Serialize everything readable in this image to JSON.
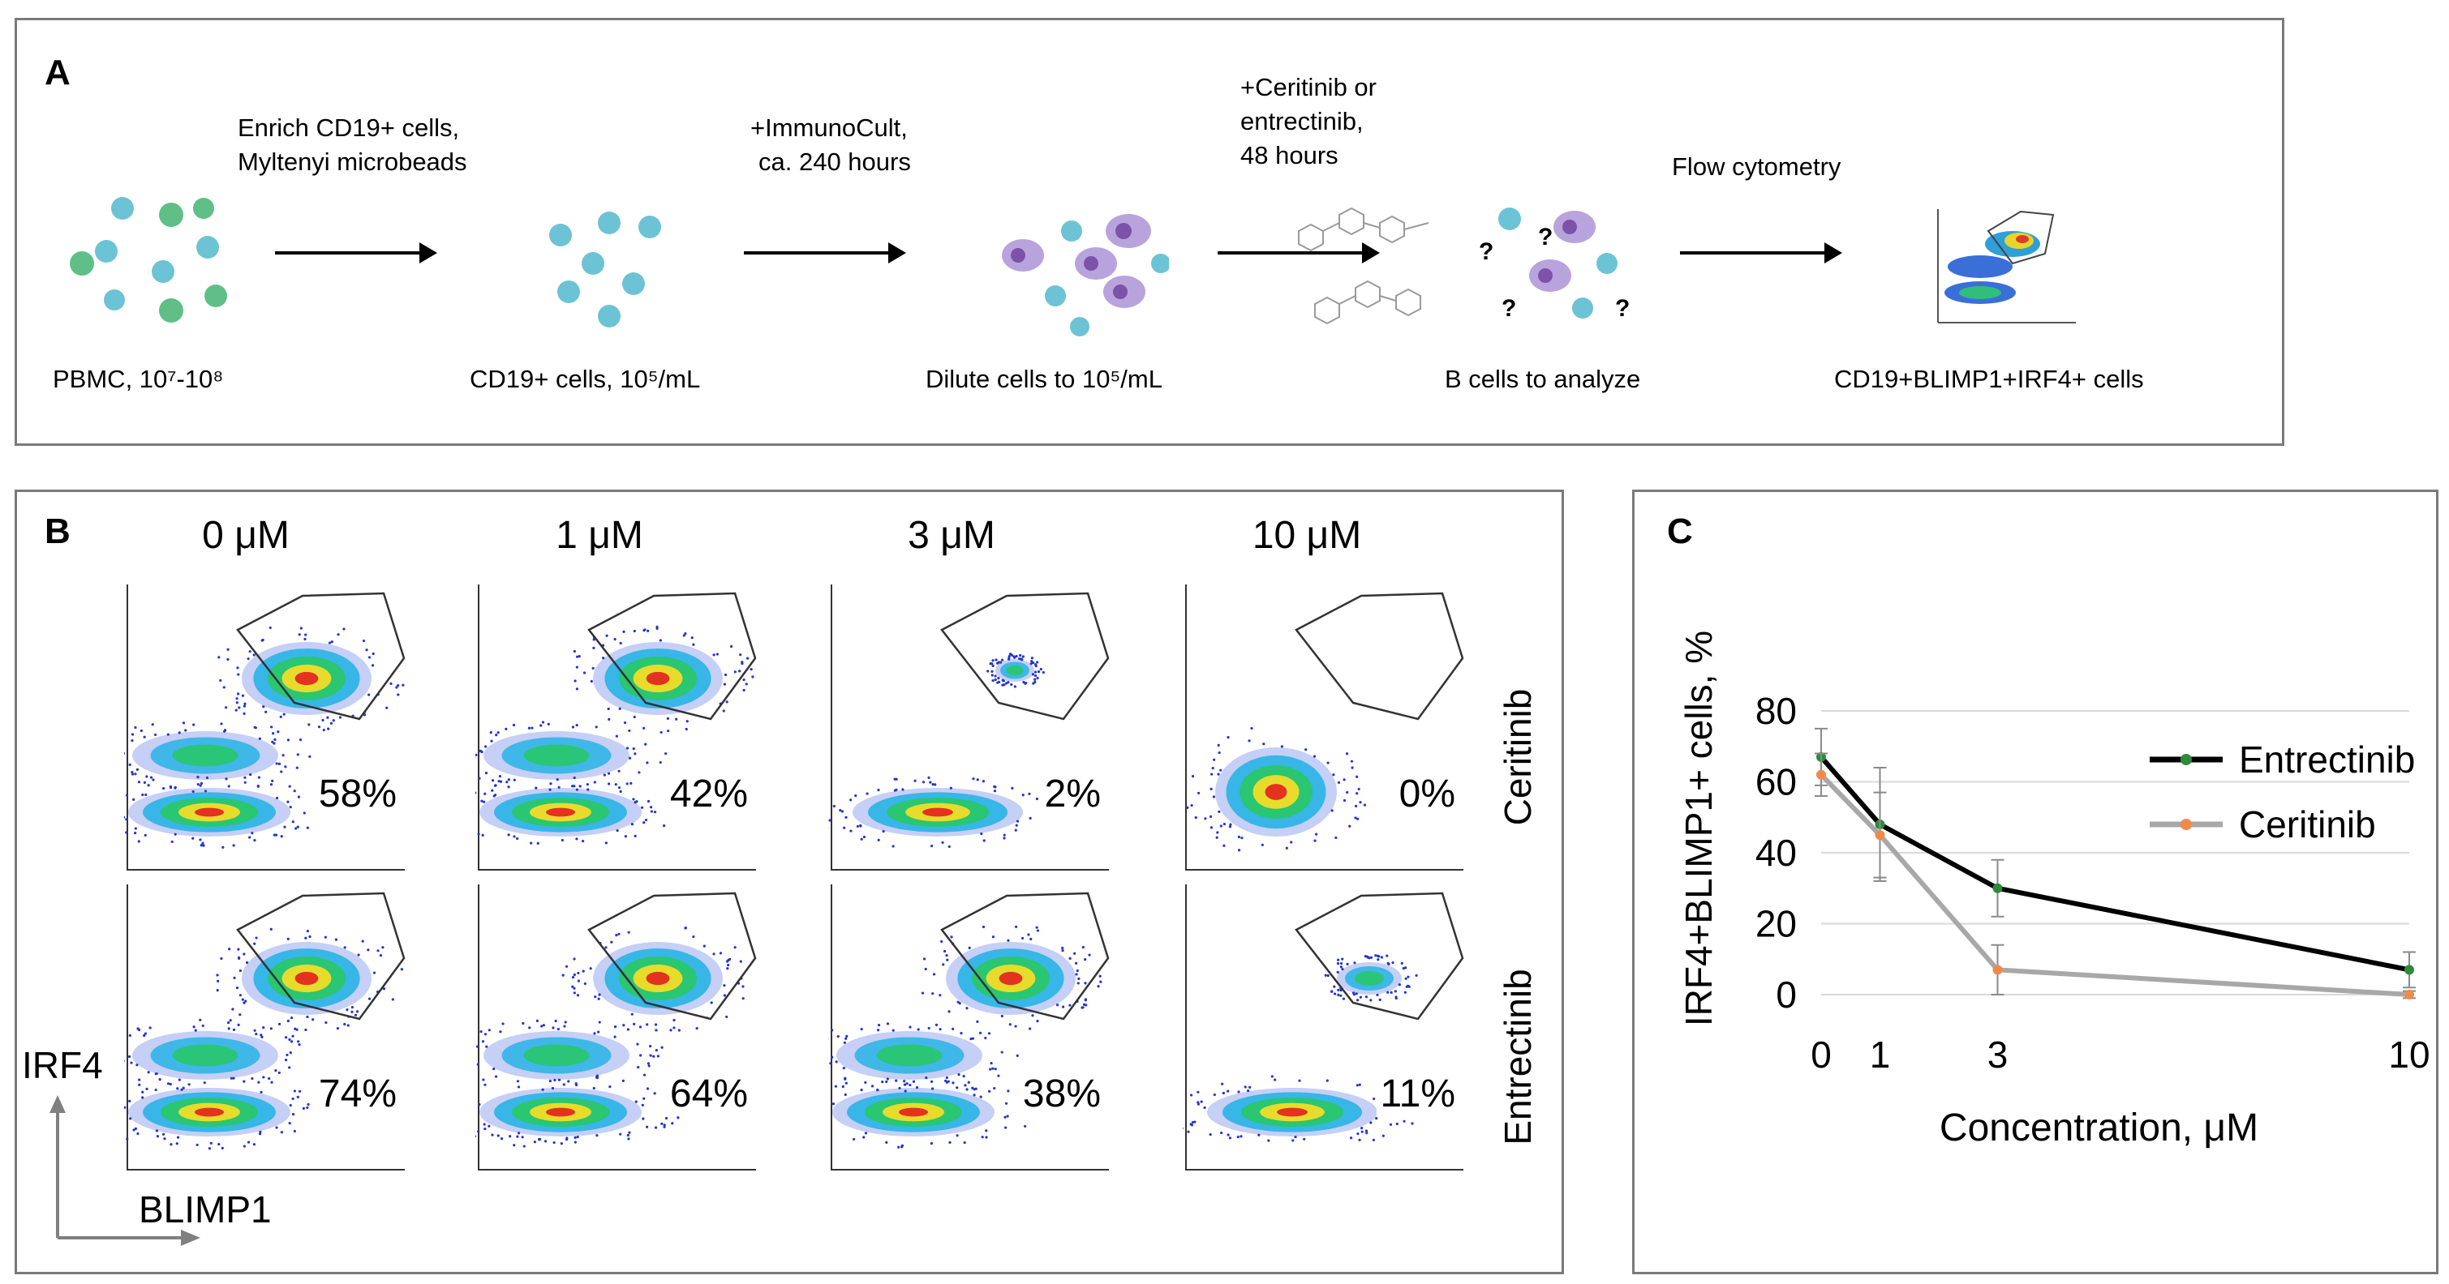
{
  "panelA": {
    "letter": "A",
    "steps": [
      {
        "label": "PBMC, 10⁷-10⁸"
      },
      {
        "label": "CD19+ cells, 10⁵/mL"
      },
      {
        "label": "Dilute cells to 10⁵/mL"
      },
      {
        "label": "B cells to analyze"
      },
      {
        "label": "CD19+BLIMP1+IRF4+ cells"
      }
    ],
    "transitions": [
      {
        "lines": [
          "Enrich CD19+ cells,",
          "Myltenyi microbeads"
        ]
      },
      {
        "lines": [
          "+ImmunoCult,",
          "ca. 240 hours"
        ]
      },
      {
        "lines": [
          "+Ceritinib or",
          "entrectinib,",
          "48 hours"
        ]
      },
      {
        "lines": [
          "Flow cytometry"
        ]
      }
    ],
    "question_mark": "?",
    "colors": {
      "b_cell": "#6cc3d5",
      "green_cell": "#5fbf86",
      "plasma_cell": "#b9a3dc",
      "plasma_nucleus": "#7c53a8"
    }
  },
  "panelB": {
    "letter": "B",
    "concentrations": [
      "0 μM",
      "1 μM",
      "3 μM",
      "10 μM"
    ],
    "rows": [
      {
        "drug": "Ceritinib",
        "percents": [
          "58%",
          "42%",
          "2%",
          "0%"
        ]
      },
      {
        "drug": "Entrectinib",
        "percents": [
          "74%",
          "64%",
          "38%",
          "11%"
        ]
      }
    ],
    "y_axis": "IRF4",
    "x_axis": "BLIMP1"
  },
  "panelC": {
    "letter": "C",
    "chart_data": {
      "type": "line",
      "xlabel": "Concentration, μM",
      "ylabel": "IRF4+BLIMP1+ cells, %",
      "x": [
        0,
        1,
        3,
        10
      ],
      "x_ticks": [
        0,
        1,
        3,
        10
      ],
      "y_ticks": [
        0,
        20,
        40,
        60,
        80
      ],
      "ylim": [
        0,
        80
      ],
      "xlim": [
        0,
        10
      ],
      "grid": "horizontal",
      "legend": "top-right",
      "series": [
        {
          "name": "Entrectinib",
          "color": "#000000",
          "marker_color": "#2e8b3a",
          "values": [
            67,
            48,
            30,
            7
          ],
          "errors": [
            8,
            16,
            8,
            5
          ]
        },
        {
          "name": "Ceritinib",
          "color": "#a8a8a8",
          "marker_color": "#f08a4b",
          "values": [
            62,
            45,
            7,
            0
          ],
          "errors": [
            6,
            12,
            7,
            1
          ]
        }
      ]
    }
  }
}
